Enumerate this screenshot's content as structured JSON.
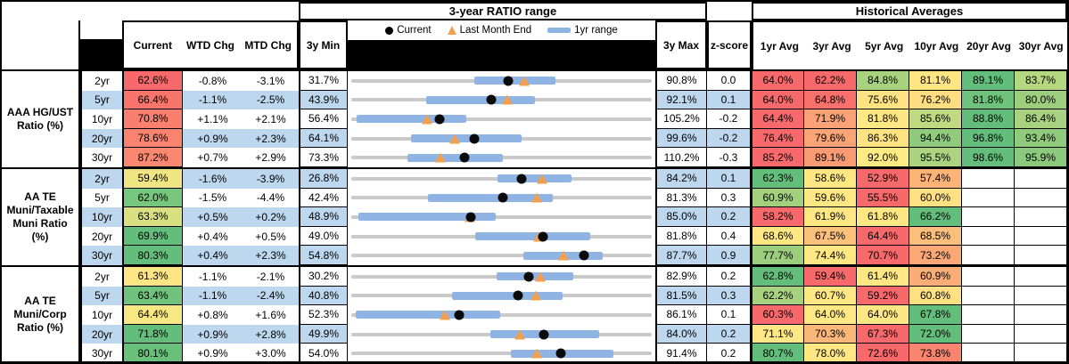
{
  "header": {
    "ratio_range_title": "3-year RATIO range",
    "historical_title": "Historical Averages",
    "columns": {
      "current": "Current",
      "wtd": "WTD Chg",
      "mtd": "MTD Chg",
      "min": "3y Min",
      "max": "3y Max",
      "zscore": "z-score"
    },
    "avg_columns": [
      "1yr Avg",
      "3yr Avg",
      "5yr Avg",
      "10yr Avg",
      "20yr Avg",
      "30yr Avg"
    ],
    "legend": {
      "current": "Current",
      "last_month": "Last Month End",
      "range": "1yr range"
    }
  },
  "colors": {
    "stripe_blue": "#BDD7EE",
    "bar_blue": "#8FB4E3",
    "gray_line": "#C9C9C9",
    "triangle_orange": "#F2A04E",
    "dot_black": "#0A0A0A",
    "scale_red": "#F8696B",
    "scale_yellow": "#FFE884",
    "scale_green": "#63BE7B"
  },
  "chart_data": {
    "type": "range-dot-table",
    "note": "Each row: gray line spans 3y Min..3y Max; blue bar = 1yr range (lo..hi); black dot = Current (cur); orange triangle = Last Month End (lme). All values are ratio percents.",
    "groups": [
      {
        "label": "AAA HG/UST Ratio (%)",
        "rows": [
          {
            "tenor": "2yr",
            "cur": "62.6%",
            "cur_bg": "#F8696B",
            "wtd": "-0.8%",
            "mtd": "-3.1%",
            "min": "31.7%",
            "max": "90.8%",
            "z": "0.0",
            "stripe": false,
            "c": {
              "min": 31.7,
              "max": 90.8,
              "cur": 62.6,
              "lme": 65.7,
              "lo": 55.9,
              "hi": 71.9
            },
            "avgs": [
              [
                "64.0%",
                "#F8696B"
              ],
              [
                "62.2%",
                "#F8696B"
              ],
              [
                "84.8%",
                "#A9D27F"
              ],
              [
                "81.1%",
                "#FFE583"
              ],
              [
                "89.1%",
                "#63BE7B"
              ],
              [
                "83.7%",
                "#B5D77F"
              ]
            ]
          },
          {
            "tenor": "5yr",
            "cur": "66.4%",
            "cur_bg": "#F8756C",
            "wtd": "-1.1%",
            "mtd": "-2.5%",
            "min": "43.9%",
            "max": "92.1%",
            "z": "0.1",
            "stripe": true,
            "c": {
              "min": 43.9,
              "max": 92.1,
              "cur": 66.4,
              "lme": 68.9,
              "lo": 55.9,
              "hi": 73.3
            },
            "avgs": [
              [
                "64.0%",
                "#F8696B"
              ],
              [
                "64.8%",
                "#F8706C"
              ],
              [
                "75.6%",
                "#FFE383"
              ],
              [
                "76.2%",
                "#FFDE82"
              ],
              [
                "81.8%",
                "#6FC27C"
              ],
              [
                "80.0%",
                "#9CCE7E"
              ]
            ]
          },
          {
            "tenor": "10yr",
            "cur": "70.8%",
            "cur_bg": "#F97F6E",
            "wtd": "+1.1%",
            "mtd": "+2.1%",
            "min": "56.4%",
            "max": "105.2%",
            "z": "-0.2",
            "stripe": false,
            "c": {
              "min": 56.4,
              "max": 105.2,
              "cur": 70.8,
              "lme": 68.7,
              "lo": 57.2,
              "hi": 75.1
            },
            "avgs": [
              [
                "64.4%",
                "#F8696B"
              ],
              [
                "71.9%",
                "#FBA376"
              ],
              [
                "81.8%",
                "#FFE884"
              ],
              [
                "85.6%",
                "#BFDA80"
              ],
              [
                "88.8%",
                "#63BE7B"
              ],
              [
                "86.4%",
                "#A8D27F"
              ]
            ]
          },
          {
            "tenor": "20yr",
            "cur": "78.6%",
            "cur_bg": "#F9836E",
            "wtd": "+0.9%",
            "mtd": "+2.3%",
            "min": "64.1%",
            "max": "99.6%",
            "z": "-0.2",
            "stripe": true,
            "c": {
              "min": 64.1,
              "max": 99.6,
              "cur": 78.6,
              "lme": 76.3,
              "lo": 71.2,
              "hi": 84.2
            },
            "avgs": [
              [
                "76.4%",
                "#F8696B"
              ],
              [
                "79.6%",
                "#FBA476"
              ],
              [
                "86.3%",
                "#FFE383"
              ],
              [
                "94.4%",
                "#8FCA7D"
              ],
              [
                "96.8%",
                "#63BE7B"
              ],
              [
                "93.4%",
                "#8FCA7D"
              ]
            ]
          },
          {
            "tenor": "30yr",
            "cur": "87.2%",
            "cur_bg": "#FA8870",
            "wtd": "+0.7%",
            "mtd": "+2.9%",
            "min": "73.3%",
            "max": "110.2%",
            "z": "-0.3",
            "stripe": false,
            "c": {
              "min": 73.3,
              "max": 110.2,
              "cur": 87.2,
              "lme": 84.3,
              "lo": 80.2,
              "hi": 91.9
            },
            "avgs": [
              [
                "85.2%",
                "#F8696B"
              ],
              [
                "89.1%",
                "#FA9B74"
              ],
              [
                "92.0%",
                "#FFEB84"
              ],
              [
                "95.5%",
                "#ACD37F"
              ],
              [
                "98.6%",
                "#63BE7B"
              ],
              [
                "95.9%",
                "#8CC97D"
              ]
            ]
          }
        ]
      },
      {
        "label": "AA TE Muni/Taxable Muni Ratio (%)",
        "rows": [
          {
            "tenor": "2yr",
            "cur": "59.4%",
            "cur_bg": "#EFE683",
            "wtd": "-1.6%",
            "mtd": "-3.9%",
            "min": "26.8%",
            "max": "84.2%",
            "z": "0.1",
            "stripe": true,
            "c": {
              "min": 26.8,
              "max": 84.2,
              "cur": 59.4,
              "lme": 63.3,
              "lo": 54.7,
              "hi": 68.9
            },
            "avgs": [
              [
                "62.3%",
                "#63BE7B"
              ],
              [
                "58.6%",
                "#FFE883"
              ],
              [
                "52.9%",
                "#F8696B"
              ],
              [
                "57.4%",
                "#FCB377"
              ],
              null,
              null
            ]
          },
          {
            "tenor": "5yr",
            "cur": "62.0%",
            "cur_bg": "#77C67D",
            "wtd": "-1.5%",
            "mtd": "-4.4%",
            "min": "42.4%",
            "max": "81.3%",
            "z": "0.3",
            "stripe": false,
            "c": {
              "min": 42.4,
              "max": 81.3,
              "cur": 62.0,
              "lme": 66.4,
              "lo": 52.3,
              "hi": 68.5
            },
            "avgs": [
              [
                "60.9%",
                "#A3D07E"
              ],
              [
                "59.6%",
                "#FFE883"
              ],
              [
                "55.5%",
                "#F8696B"
              ],
              [
                "60.0%",
                "#FFE183"
              ],
              null,
              null
            ]
          },
          {
            "tenor": "10yr",
            "cur": "63.3%",
            "cur_bg": "#D8E081",
            "wtd": "+0.5%",
            "mtd": "+0.2%",
            "min": "48.9%",
            "max": "85.0%",
            "z": "0.2",
            "stripe": true,
            "c": {
              "min": 48.9,
              "max": 85.0,
              "cur": 63.3,
              "lme": 63.1,
              "lo": 49.8,
              "hi": 66.3
            },
            "avgs": [
              [
                "58.2%",
                "#F8696B"
              ],
              [
                "61.9%",
                "#FFE884"
              ],
              [
                "61.8%",
                "#FFE884"
              ],
              [
                "66.2%",
                "#63BE7B"
              ],
              null,
              null
            ]
          },
          {
            "tenor": "20yr",
            "cur": "69.9%",
            "cur_bg": "#63BE7B",
            "wtd": "+0.4%",
            "mtd": "+0.5%",
            "min": "49.0%",
            "max": "81.8%",
            "z": "0.4",
            "stripe": false,
            "c": {
              "min": 49.0,
              "max": 81.8,
              "cur": 69.9,
              "lme": 69.4,
              "lo": 62.5,
              "hi": 75.1
            },
            "avgs": [
              [
                "68.6%",
                "#FFE884"
              ],
              [
                "67.5%",
                "#FCC27C"
              ],
              [
                "64.4%",
                "#F8696B"
              ],
              [
                "68.5%",
                "#FCBE7B"
              ],
              null,
              null
            ]
          },
          {
            "tenor": "30yr",
            "cur": "80.3%",
            "cur_bg": "#63BE7B",
            "wtd": "+0.4%",
            "mtd": "+2.3%",
            "min": "54.8%",
            "max": "87.7%",
            "z": "0.9",
            "stripe": true,
            "c": {
              "min": 54.8,
              "max": 87.7,
              "cur": 80.3,
              "lme": 78.0,
              "lo": 73.6,
              "hi": 82.3
            },
            "avgs": [
              [
                "77.7%",
                "#9CCE7E"
              ],
              [
                "74.4%",
                "#FFE884"
              ],
              [
                "70.7%",
                "#F8696B"
              ],
              [
                "73.2%",
                "#FBA876"
              ],
              null,
              null
            ]
          }
        ]
      },
      {
        "label": "AA TE Muni/Corp Ratio (%)",
        "rows": [
          {
            "tenor": "2yr",
            "cur": "61.3%",
            "cur_bg": "#FFE584",
            "wtd": "-1.1%",
            "mtd": "-2.1%",
            "min": "30.2%",
            "max": "82.9%",
            "z": "0.2",
            "stripe": false,
            "c": {
              "min": 30.2,
              "max": 82.9,
              "cur": 61.3,
              "lme": 63.4,
              "lo": 55.7,
              "hi": 69.1
            },
            "avgs": [
              [
                "62.8%",
                "#63BE7B"
              ],
              [
                "59.4%",
                "#F8696B"
              ],
              [
                "61.4%",
                "#FFE884"
              ],
              [
                "60.9%",
                "#FBAD78"
              ],
              null,
              null
            ]
          },
          {
            "tenor": "5yr",
            "cur": "63.4%",
            "cur_bg": "#70C27C",
            "wtd": "-1.1%",
            "mtd": "-2.4%",
            "min": "40.8%",
            "max": "81.5%",
            "z": "0.3",
            "stripe": true,
            "c": {
              "min": 40.8,
              "max": 81.5,
              "cur": 63.4,
              "lme": 65.8,
              "lo": 54.4,
              "hi": 69.4
            },
            "avgs": [
              [
                "62.2%",
                "#A8D27F"
              ],
              [
                "60.7%",
                "#FFE884"
              ],
              [
                "59.2%",
                "#F8696B"
              ],
              [
                "60.8%",
                "#FFE083"
              ],
              null,
              null
            ]
          },
          {
            "tenor": "10yr",
            "cur": "64.4%",
            "cur_bg": "#F7E884",
            "wtd": "+0.8%",
            "mtd": "+1.6%",
            "min": "52.3%",
            "max": "86.1%",
            "z": "0.1",
            "stripe": false,
            "c": {
              "min": 52.3,
              "max": 86.1,
              "cur": 64.4,
              "lme": 62.8,
              "lo": 52.8,
              "hi": 69.0
            },
            "avgs": [
              [
                "60.3%",
                "#F8696B"
              ],
              [
                "64.0%",
                "#FFE884"
              ],
              [
                "64.0%",
                "#FFE884"
              ],
              [
                "67.8%",
                "#63BE7B"
              ],
              null,
              null
            ]
          },
          {
            "tenor": "20yr",
            "cur": "71.8%",
            "cur_bg": "#63BE7B",
            "wtd": "+0.9%",
            "mtd": "+2.8%",
            "min": "49.9%",
            "max": "84.0%",
            "z": "0.2",
            "stripe": true,
            "c": {
              "min": 49.9,
              "max": 84.0,
              "cur": 71.8,
              "lme": 69.0,
              "lo": 65.7,
              "hi": 78.0
            },
            "avgs": [
              [
                "71.1%",
                "#FFE884"
              ],
              [
                "70.3%",
                "#FBB67A"
              ],
              [
                "67.3%",
                "#F8696B"
              ],
              [
                "72.0%",
                "#63BE7B"
              ],
              null,
              null
            ]
          },
          {
            "tenor": "30yr",
            "cur": "80.1%",
            "cur_bg": "#68C07B",
            "wtd": "+0.9%",
            "mtd": "+3.0%",
            "min": "54.0%",
            "max": "91.4%",
            "z": "0.2",
            "stripe": false,
            "c": {
              "min": 54.0,
              "max": 91.4,
              "cur": 80.1,
              "lme": 77.1,
              "lo": 73.9,
              "hi": 86.6
            },
            "avgs": [
              [
                "80.7%",
                "#63BE7B"
              ],
              [
                "78.0%",
                "#FFE884"
              ],
              [
                "72.6%",
                "#F8696B"
              ],
              [
                "73.8%",
                "#F98570"
              ],
              null,
              null
            ]
          }
        ]
      }
    ]
  }
}
